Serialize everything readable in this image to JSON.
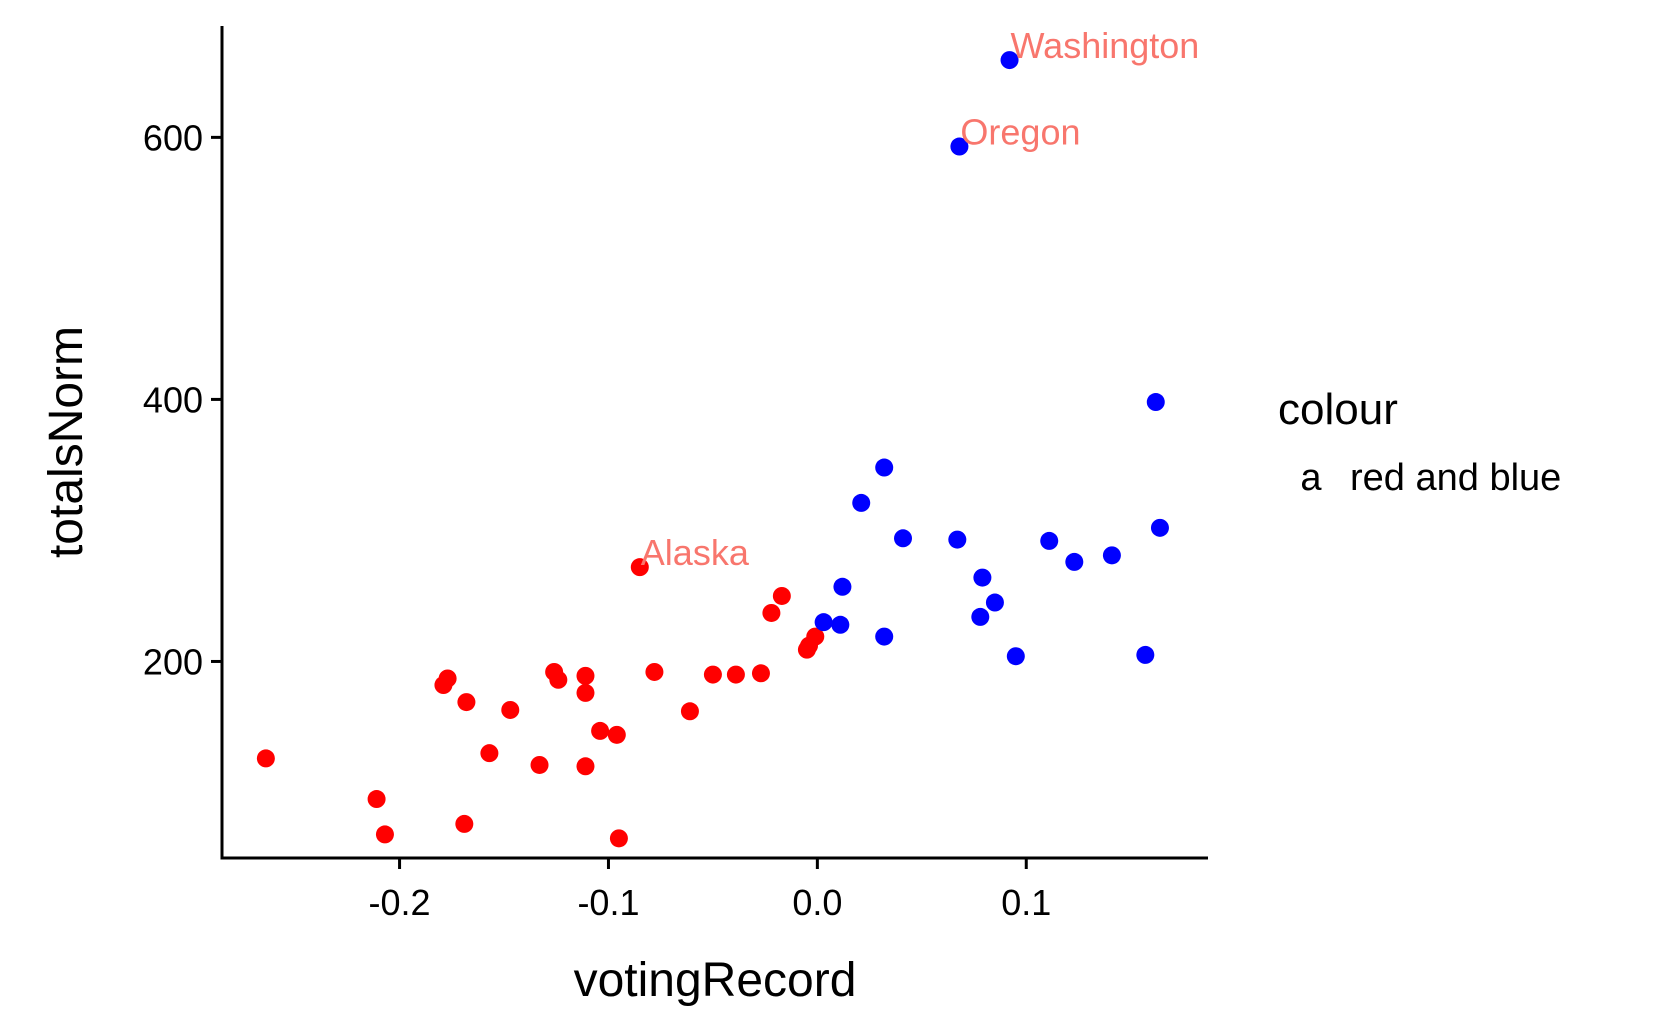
{
  "colors": {
    "red": "#ff0000",
    "blue": "#0000ff",
    "label": "#f8766d",
    "axis": "#000000"
  },
  "chart_data": {
    "type": "scatter",
    "xlabel": "votingRecord",
    "ylabel": "totalsNorm",
    "xlim": [
      -0.285,
      0.187
    ],
    "ylim": [
      50,
      685
    ],
    "xticks": [
      -0.2,
      -0.1,
      0.0,
      0.1
    ],
    "xtick_labels": [
      "-0.2",
      "-0.1",
      "0.0",
      "0.1"
    ],
    "yticks": [
      200,
      400,
      600
    ],
    "ytick_labels": [
      "200",
      "400",
      "600"
    ],
    "grid": false,
    "legend": {
      "position": "right",
      "title": "colour",
      "key_glyph": "a",
      "entries": [
        "red and blue"
      ]
    },
    "series": [
      {
        "color": "#ff0000",
        "points": [
          [
            -0.264,
            126
          ],
          [
            -0.211,
            95
          ],
          [
            -0.207,
            68
          ],
          [
            -0.179,
            182
          ],
          [
            -0.177,
            187
          ],
          [
            -0.168,
            169
          ],
          [
            -0.169,
            76
          ],
          [
            -0.157,
            130
          ],
          [
            -0.147,
            163
          ],
          [
            -0.133,
            121
          ],
          [
            -0.126,
            192
          ],
          [
            -0.124,
            186
          ],
          [
            -0.111,
            189
          ],
          [
            -0.111,
            176
          ],
          [
            -0.111,
            120
          ],
          [
            -0.104,
            147
          ],
          [
            -0.096,
            144
          ],
          [
            -0.095,
            65
          ],
          [
            -0.085,
            272
          ],
          [
            -0.078,
            192
          ],
          [
            -0.061,
            162
          ],
          [
            -0.05,
            190
          ],
          [
            -0.039,
            190
          ],
          [
            -0.027,
            191
          ],
          [
            -0.022,
            237
          ],
          [
            -0.017,
            250
          ],
          [
            -0.005,
            209
          ],
          [
            -0.004,
            212
          ],
          [
            -0.001,
            219
          ]
        ]
      },
      {
        "color": "#0000ff",
        "points": [
          [
            0.003,
            230
          ],
          [
            0.011,
            228
          ],
          [
            0.012,
            257
          ],
          [
            0.021,
            321
          ],
          [
            0.032,
            348
          ],
          [
            0.032,
            219
          ],
          [
            0.041,
            294
          ],
          [
            0.067,
            293
          ],
          [
            0.068,
            593
          ],
          [
            0.078,
            234
          ],
          [
            0.079,
            264
          ],
          [
            0.085,
            245
          ],
          [
            0.092,
            659
          ],
          [
            0.095,
            204
          ],
          [
            0.111,
            292
          ],
          [
            0.123,
            276
          ],
          [
            0.141,
            281
          ],
          [
            0.157,
            205
          ],
          [
            0.162,
            398
          ],
          [
            0.164,
            302
          ]
        ]
      }
    ],
    "annotations": [
      {
        "text": "Washington",
        "x": 0.092,
        "y": 659
      },
      {
        "text": "Oregon",
        "x": 0.068,
        "y": 593
      },
      {
        "text": "Alaska",
        "x": -0.085,
        "y": 272
      }
    ]
  }
}
